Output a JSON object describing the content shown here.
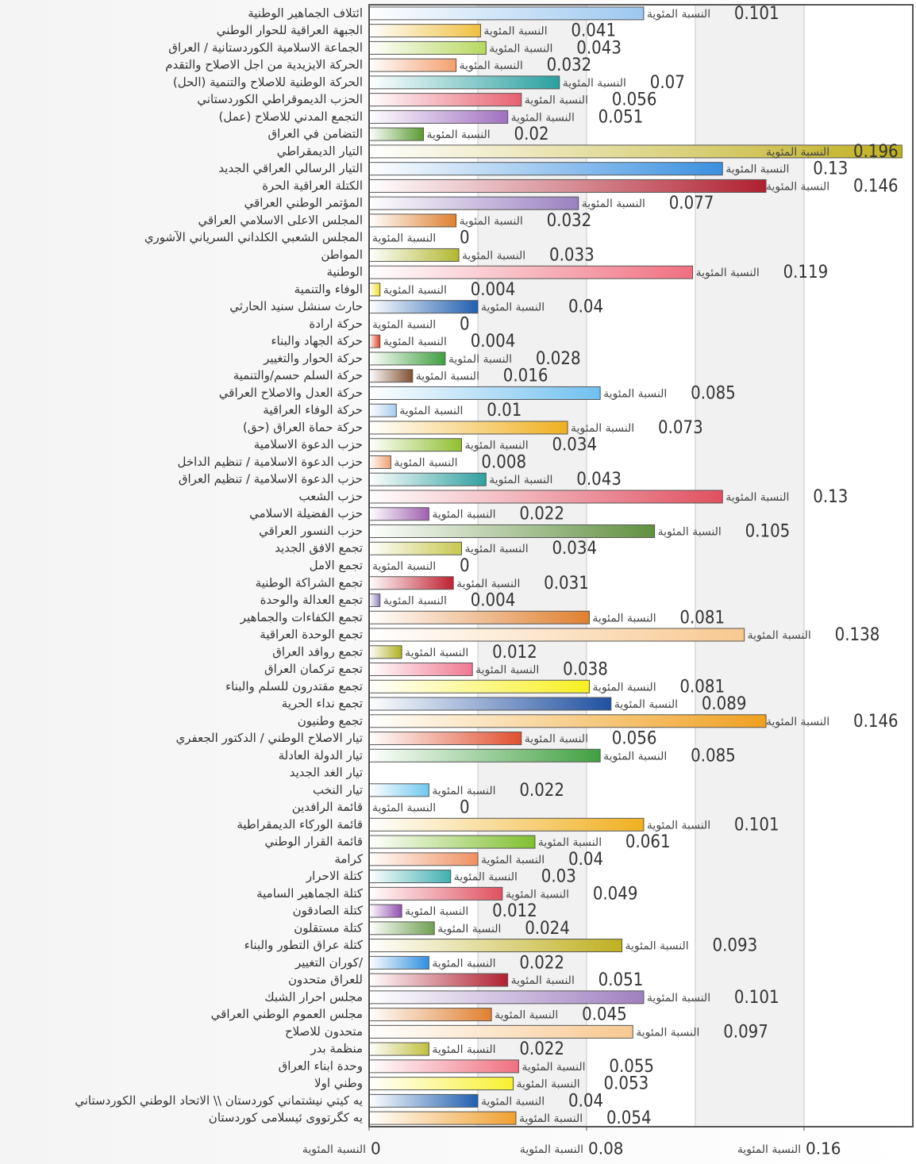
{
  "chart_data": {
    "type": "hbar",
    "categories": [
      "ائتلاف الجماهير الوطنية",
      "الجبهة العراقية للحوار الوطني",
      "الجماعة الاسلامية الكوردستانية / العراق",
      "الحركة الايزيدية من اجل الاصلاح والتقدم",
      "الحركة الوطنية للاصلاح والتنمية (الحل)",
      "الحزب الديموقراطي الكوردستاني",
      "التجمع المدني للاصلاح (عمل)",
      "التضامن في العراق",
      "التيار الديمقراطي",
      "التيار الرسالي العراقي الجديد",
      "الكتلة العراقية الحرة",
      "المؤتمر الوطني العراقي",
      "المجلس الاعلى الاسلامي العراقي",
      "المجلس الشعبي الكلداني السرياني الآشوري",
      "المواطن",
      "الوطنية",
      "الوفاء والتنمية",
      "حارث سنشل سنيد الحارثي",
      "حركة ارادة",
      "حركة الجهاد والبناء",
      "حركة الحوار والتغيير",
      "حركة السلم حسم/والتنمية",
      "حركة العدل والاصلاح العراقي",
      "حركة الوفاء العراقية",
      "حركة حماة العراق (حق)",
      "حزب الدعوة الاسلامية",
      "حزب الدعوة الاسلامية / تنظيم الداخل",
      "حزب الدعوة الاسلامية / تنظيم العراق",
      "حزب الشعب",
      "حزب الفضيلة الاسلامي",
      "حزب النسور العراقي",
      "تجمع الافق الجديد",
      "تجمع الامل",
      "تجمع الشراكة الوطنية",
      "تجمع العدالة والوحدة",
      "تجمع الكفاءات والجماهير",
      "تجمع الوحدة العراقية",
      "تجمع روافد العراق",
      "تجمع تركمان العراق",
      "تجمع مقتدرون للسلم والبناء",
      "تجمع نداء الحرية",
      "تجمع وطنيون",
      "تيار الاصلاح الوطني / الدكتور الجعفري",
      "تيار الدولة العادلة",
      "تيار الغد الجديد",
      "تيار النخب",
      "قائمة الرافدين",
      "قائمة الوركاء الديمقراطية",
      "قائمة القرار الوطني",
      "كرامة",
      "كتلة الاحرار",
      "كتلة الجماهير السامية",
      "كتلة الصادقون",
      "كتلة مستقلون",
      "كتلة عراق التطور والبناء",
      "كوران التغيير/",
      "للعراق متحدون",
      "مجلس احرار الشبك",
      "مجلس العموم الوطني العراقي",
      "متحدون للاصلاح",
      "منظمة بدر",
      "وحدة ابناء العراق",
      "وطني اولا",
      "يه كيتي نيشتماني كوردستان \\\\ الاتحاد الوطني الكوردستاني",
      "يه كگرتووى ئيسلامى كوردستان"
    ],
    "series": [
      {
        "name": "النسبة المئوية",
        "values": [
          0.101,
          0.041,
          0.043,
          0.032,
          0.07,
          0.056,
          0.051,
          0.02,
          0.196,
          0.13,
          0.146,
          0.077,
          0.032,
          0,
          0.033,
          0.119,
          0.004,
          0.04,
          0,
          0.004,
          0.028,
          0.016,
          0.085,
          0.01,
          0.073,
          0.034,
          0.008,
          0.043,
          0.13,
          0.022,
          0.105,
          0.034,
          0,
          0.031,
          0.004,
          0.081,
          0.138,
          0.012,
          0.038,
          0.081,
          0.089,
          0.146,
          0.056,
          0.085,
          null,
          0.022,
          0,
          0.101,
          0.061,
          0.04,
          0.03,
          0.049,
          0.012,
          0.024,
          0.093,
          0.022,
          0.051,
          0.101,
          0.045,
          0.097,
          0.022,
          0.055,
          0.053,
          0.04,
          0.054
        ],
        "colors": [
          "#9cc8f0",
          "#f0c040",
          "#b8d860",
          "#f4a070",
          "#2aa0a0",
          "#e86070",
          "#a070c0",
          "#5a9a30",
          "#c0b020",
          "#3a90e0",
          "#b02030",
          "#9a80c0",
          "#e08030",
          "#a0c0e0",
          "#b0b830",
          "#f07080",
          "#f0e020",
          "#2060b0",
          "#cccccc",
          "#e04020",
          "#40a040",
          "#805030",
          "#70c0f0",
          "#a8cdf0",
          "#f0b020",
          "#90c030",
          "#f0a070",
          "#30a0a0",
          "#e05060",
          "#a060b0",
          "#609040",
          "#c8c850",
          "#cccccc",
          "#c02030",
          "#9080c0",
          "#e08030",
          "#f8c890",
          "#b0b020",
          "#f07890",
          "#f8f020",
          "#2050a0",
          "#f0a020",
          "#e05030",
          "#40a040",
          "#cccccc",
          "#70c8f0",
          "#cccccc",
          "#f0b020",
          "#80c030",
          "#f09060",
          "#40b0b0",
          "#e05060",
          "#9050b0",
          "#70a050",
          "#c0b020",
          "#3090e0",
          "#b02030",
          "#a080c0",
          "#e08030",
          "#f8c890",
          "#c0c040",
          "#f07080",
          "#f8f030",
          "#2060b0",
          "#f0a030"
        ]
      }
    ],
    "xlim": [
      0,
      0.2
    ],
    "xticks": [
      0,
      0.08,
      0.16
    ],
    "grid_xticks": [
      0.04,
      0.08,
      0.12,
      0.16
    ],
    "grid": true
  }
}
